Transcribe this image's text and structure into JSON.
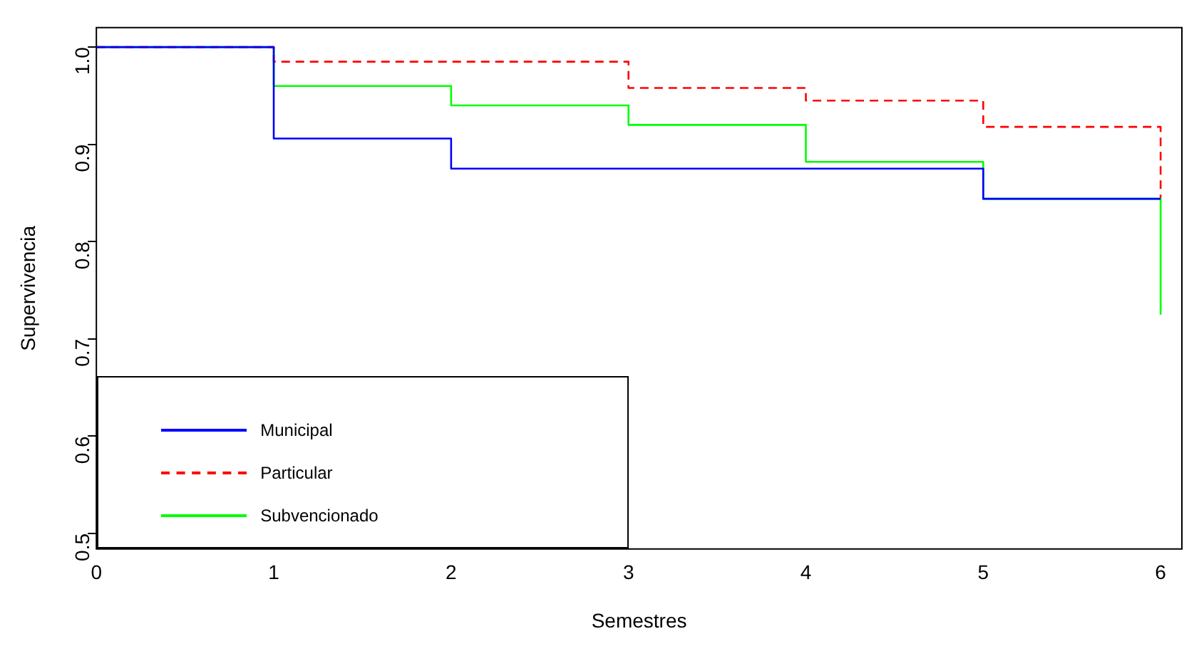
{
  "chart_data": {
    "type": "step",
    "xlabel": "Semestres",
    "ylabel": "Supervivencia",
    "x": [
      0,
      1,
      2,
      3,
      4,
      5,
      6
    ],
    "xlim": [
      0,
      6.12
    ],
    "xticks": [
      0,
      1,
      2,
      3,
      4,
      5,
      6
    ],
    "ylim": [
      0.484,
      1.02
    ],
    "yticks": [
      0.5,
      0.6,
      0.7,
      0.8,
      0.9,
      {
        "value": 1,
        "label": "1.0"
      }
    ],
    "grid": false,
    "legend": "bottom left",
    "marker": "none",
    "series": [
      {
        "name": "Municipal",
        "color": "#0000ff",
        "line_style": "solid",
        "values": [
          1,
          0.906,
          0.875,
          0.875,
          0.875,
          0.844,
          0.844
        ]
      },
      {
        "name": "Particular",
        "color": "#ff0000",
        "line_style": "dashed",
        "values": [
          1,
          0.985,
          0.985,
          0.958,
          0.945,
          0.918,
          0.845
        ]
      },
      {
        "name": "Subvencionado",
        "color": "#00ff00",
        "line_style": "solid",
        "values": [
          1,
          0.96,
          0.94,
          0.92,
          0.882,
          0.844,
          0.725
        ]
      }
    ]
  }
}
